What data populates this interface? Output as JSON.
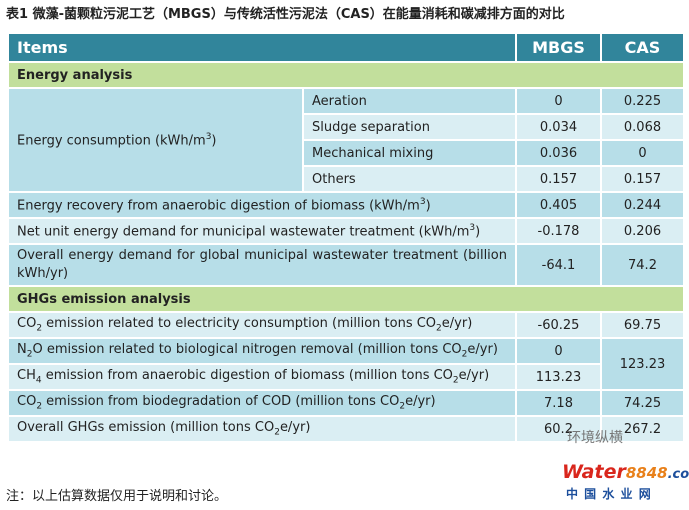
{
  "title": "表1 微藻-菌颗粒污泥工艺（MBGS）与传统活性污泥法（CAS）在能量消耗和碳减排方面的对比",
  "table": {
    "header": [
      "Items",
      "MBGS",
      "CAS"
    ],
    "sections": [
      {
        "title": "Energy analysis",
        "rows": [
          {
            "label": [
              "Energy consumption (kWh/m",
              "3",
              ")"
            ],
            "items": [
              {
                "name": "Aeration",
                "mbgs": "0",
                "cas": "0.225"
              },
              {
                "name": "Sludge separation",
                "mbgs": "0.034",
                "cas": "0.068"
              },
              {
                "name": "Mechanical mixing",
                "mbgs": "0.036",
                "cas": "0"
              },
              {
                "name": "Others",
                "mbgs": "0.157",
                "cas": "0.157"
              }
            ]
          },
          {
            "label": [
              "Energy recovery from anaerobic digestion of biomass (kWh/m",
              "3",
              ")"
            ],
            "mbgs": "0.405",
            "cas": "0.244"
          },
          {
            "label": [
              "Net unit energy demand for municipal wastewater treatment (kWh/m",
              "3",
              ")"
            ],
            "mbgs": "-0.178",
            "cas": "0.206"
          },
          {
            "label": [
              "Overall energy demand for global municipal wastewater treatment (billion kWh/yr)"
            ],
            "mbgs": "-64.1",
            "cas": "74.2"
          }
        ]
      },
      {
        "title": "GHGs emission analysis",
        "rows": [
          {
            "label": [
              "CO",
              "2",
              " emission related to electricity consumption (million tons CO",
              "2",
              "e/yr)"
            ],
            "mbgs": "-60.25",
            "cas": "69.75"
          },
          {
            "label": [
              "N",
              "2",
              "O emission related to biological nitrogen removal (million tons CO",
              "2",
              "e/yr)"
            ],
            "mbgs": "0",
            "cas": "123.23"
          },
          {
            "label": [
              "CH",
              "4",
              " emission from anaerobic digestion of biomass (million tons CO",
              "2",
              "e/yr)"
            ],
            "mbgs": "113.23"
          },
          {
            "label": [
              "CO",
              "2",
              " emission from biodegradation of COD (million tons CO",
              "2",
              "e/yr)"
            ],
            "mbgs": "7.18",
            "cas": "74.25"
          },
          {
            "label": [
              "Overall GHGs emission (million tons CO",
              "2",
              "e/yr)"
            ],
            "mbgs": "60.2",
            "cas": "267.2"
          }
        ]
      }
    ]
  },
  "note": "注：以上估算数据仅用于说明和讨论。",
  "watermark": "环境纵横",
  "logo": [
    "Water",
    "8848",
    ".com"
  ],
  "site": "中 国 水 业 网"
}
